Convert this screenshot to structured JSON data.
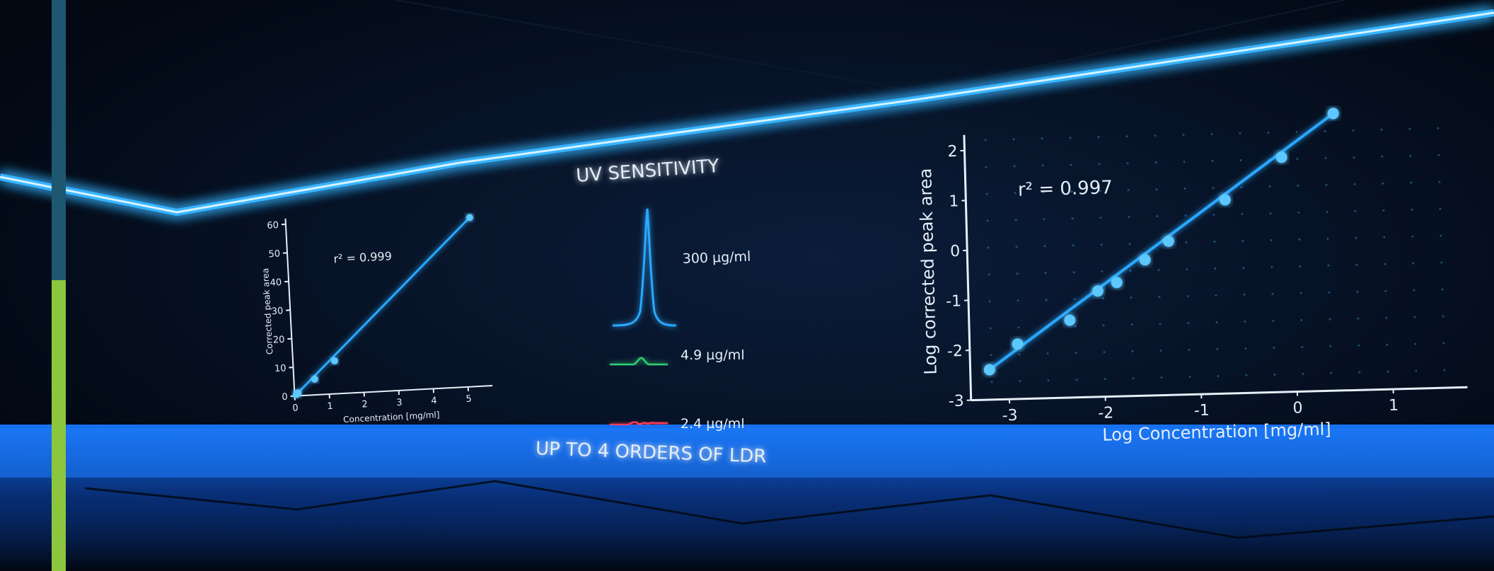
{
  "colors": {
    "background": "#020812",
    "neon": "#29a8ff",
    "accent_top": "#1d5870",
    "accent_bottom": "#8cc63f",
    "trace_green": "#2ecc71",
    "trace_red": "#ff3b5c",
    "text": "#e6eef8"
  },
  "center": {
    "title": "UV SENSITIVITY",
    "subtitle": "UP TO 4 ORDERS OF LDR",
    "traces": [
      {
        "label": "300 µg/ml",
        "color": "#29a8ff"
      },
      {
        "label": "4.9 µg/ml",
        "color": "#2ecc71"
      },
      {
        "label": "2.4 µg/ml",
        "color": "#ff3b5c"
      }
    ]
  },
  "chart_data": [
    {
      "type": "scatter",
      "r2_label": "r² = 0.999",
      "xlabel": "Concentration [mg/ml]",
      "ylabel": "Corrected peak area",
      "xlim": [
        0,
        5.5
      ],
      "ylim": [
        0,
        60
      ],
      "x_ticks": [
        "0",
        "1",
        "2",
        "3",
        "4",
        "5"
      ],
      "y_ticks": [
        "0",
        "10",
        "20",
        "30",
        "40",
        "50",
        "60"
      ],
      "points": [
        {
          "x": 0.05,
          "y": 0.5
        },
        {
          "x": 0.1,
          "y": 1.0
        },
        {
          "x": 0.6,
          "y": 5.5
        },
        {
          "x": 1.2,
          "y": 11.5
        },
        {
          "x": 5.3,
          "y": 59.0
        }
      ],
      "fit_line": true,
      "grid": false
    },
    {
      "type": "scatter",
      "r2_label": "r² = 0.997",
      "xlabel": "Log Concentration [mg/ml]",
      "ylabel": "Log corrected peak area",
      "xlim": [
        -3.4,
        1.7
      ],
      "ylim": [
        -3,
        2.2
      ],
      "x_ticks": [
        "-3",
        "-2",
        "-1",
        "0",
        "1"
      ],
      "y_ticks": [
        "-3",
        "-2",
        "-1",
        "0",
        "1",
        "2"
      ],
      "points": [
        {
          "x": -3.2,
          "y": -2.4
        },
        {
          "x": -2.9,
          "y": -1.9
        },
        {
          "x": -2.35,
          "y": -1.45
        },
        {
          "x": -2.05,
          "y": -0.88
        },
        {
          "x": -1.85,
          "y": -0.72
        },
        {
          "x": -1.55,
          "y": -0.28
        },
        {
          "x": -1.3,
          "y": 0.08
        },
        {
          "x": -0.7,
          "y": 0.88
        },
        {
          "x": -0.1,
          "y": 1.7
        },
        {
          "x": 0.45,
          "y": 2.55
        }
      ],
      "fit_line": true,
      "grid": true
    }
  ]
}
